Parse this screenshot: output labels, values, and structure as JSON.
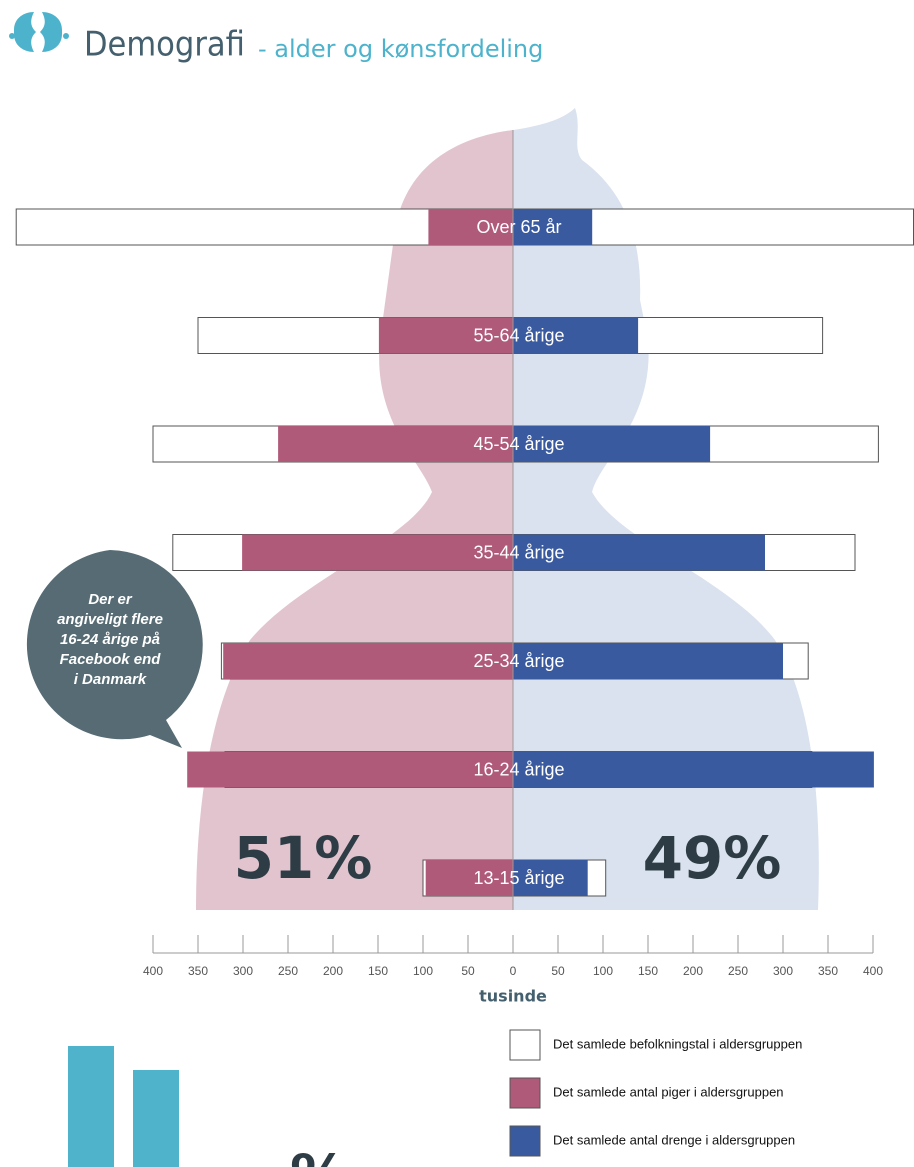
{
  "chart_data": {
    "type": "population_pyramid",
    "title": "Demografi",
    "subtitle": "- alder og kønsfordeling",
    "x_label": "tusinde",
    "categories": [
      "Over 65 år",
      "55-64 årige",
      "45-54 årige",
      "35-44 årige",
      "25-34 årige",
      "16-24 årige",
      "13-15 årige"
    ],
    "totals": {
      "name": "Det samlede befolkningstal i aldersgruppen",
      "color": "#ffffff",
      "female": [
        552,
        350,
        400,
        378,
        324,
        320,
        100
      ],
      "male": [
        445,
        344,
        406,
        380,
        328,
        332,
        103
      ]
    },
    "series": [
      {
        "name": "Det samlede antal piger i aldersgruppen",
        "color": "#b05a7a",
        "values": [
          94,
          149,
          261,
          301,
          322,
          362,
          97
        ]
      },
      {
        "name": "Det samlede antal drenge i aldersgruppen",
        "color": "#3a5aa0",
        "values": [
          88,
          139,
          219,
          280,
          300,
          401,
          83
        ]
      }
    ],
    "xlim": [
      -400,
      400
    ],
    "xticks": [
      {
        "value": -400,
        "label": "400"
      },
      {
        "value": -350,
        "label": "350"
      },
      {
        "value": -300,
        "label": "300"
      },
      {
        "value": -250,
        "label": "250"
      },
      {
        "value": -200,
        "label": "200"
      },
      {
        "value": -150,
        "label": "150"
      },
      {
        "value": -100,
        "label": "100"
      },
      {
        "value": -50,
        "label": "50"
      },
      0,
      50,
      100,
      150,
      200,
      250,
      300,
      350,
      400
    ],
    "shares": [
      {
        "value": 51,
        "label": "51%"
      },
      {
        "value": 49,
        "label": "49%"
      }
    ],
    "annotation": [
      "Der er",
      "angiveligt flere",
      "16-24 årige på",
      "Facebook end",
      "i Danmark"
    ],
    "footer_fragment": "%"
  }
}
